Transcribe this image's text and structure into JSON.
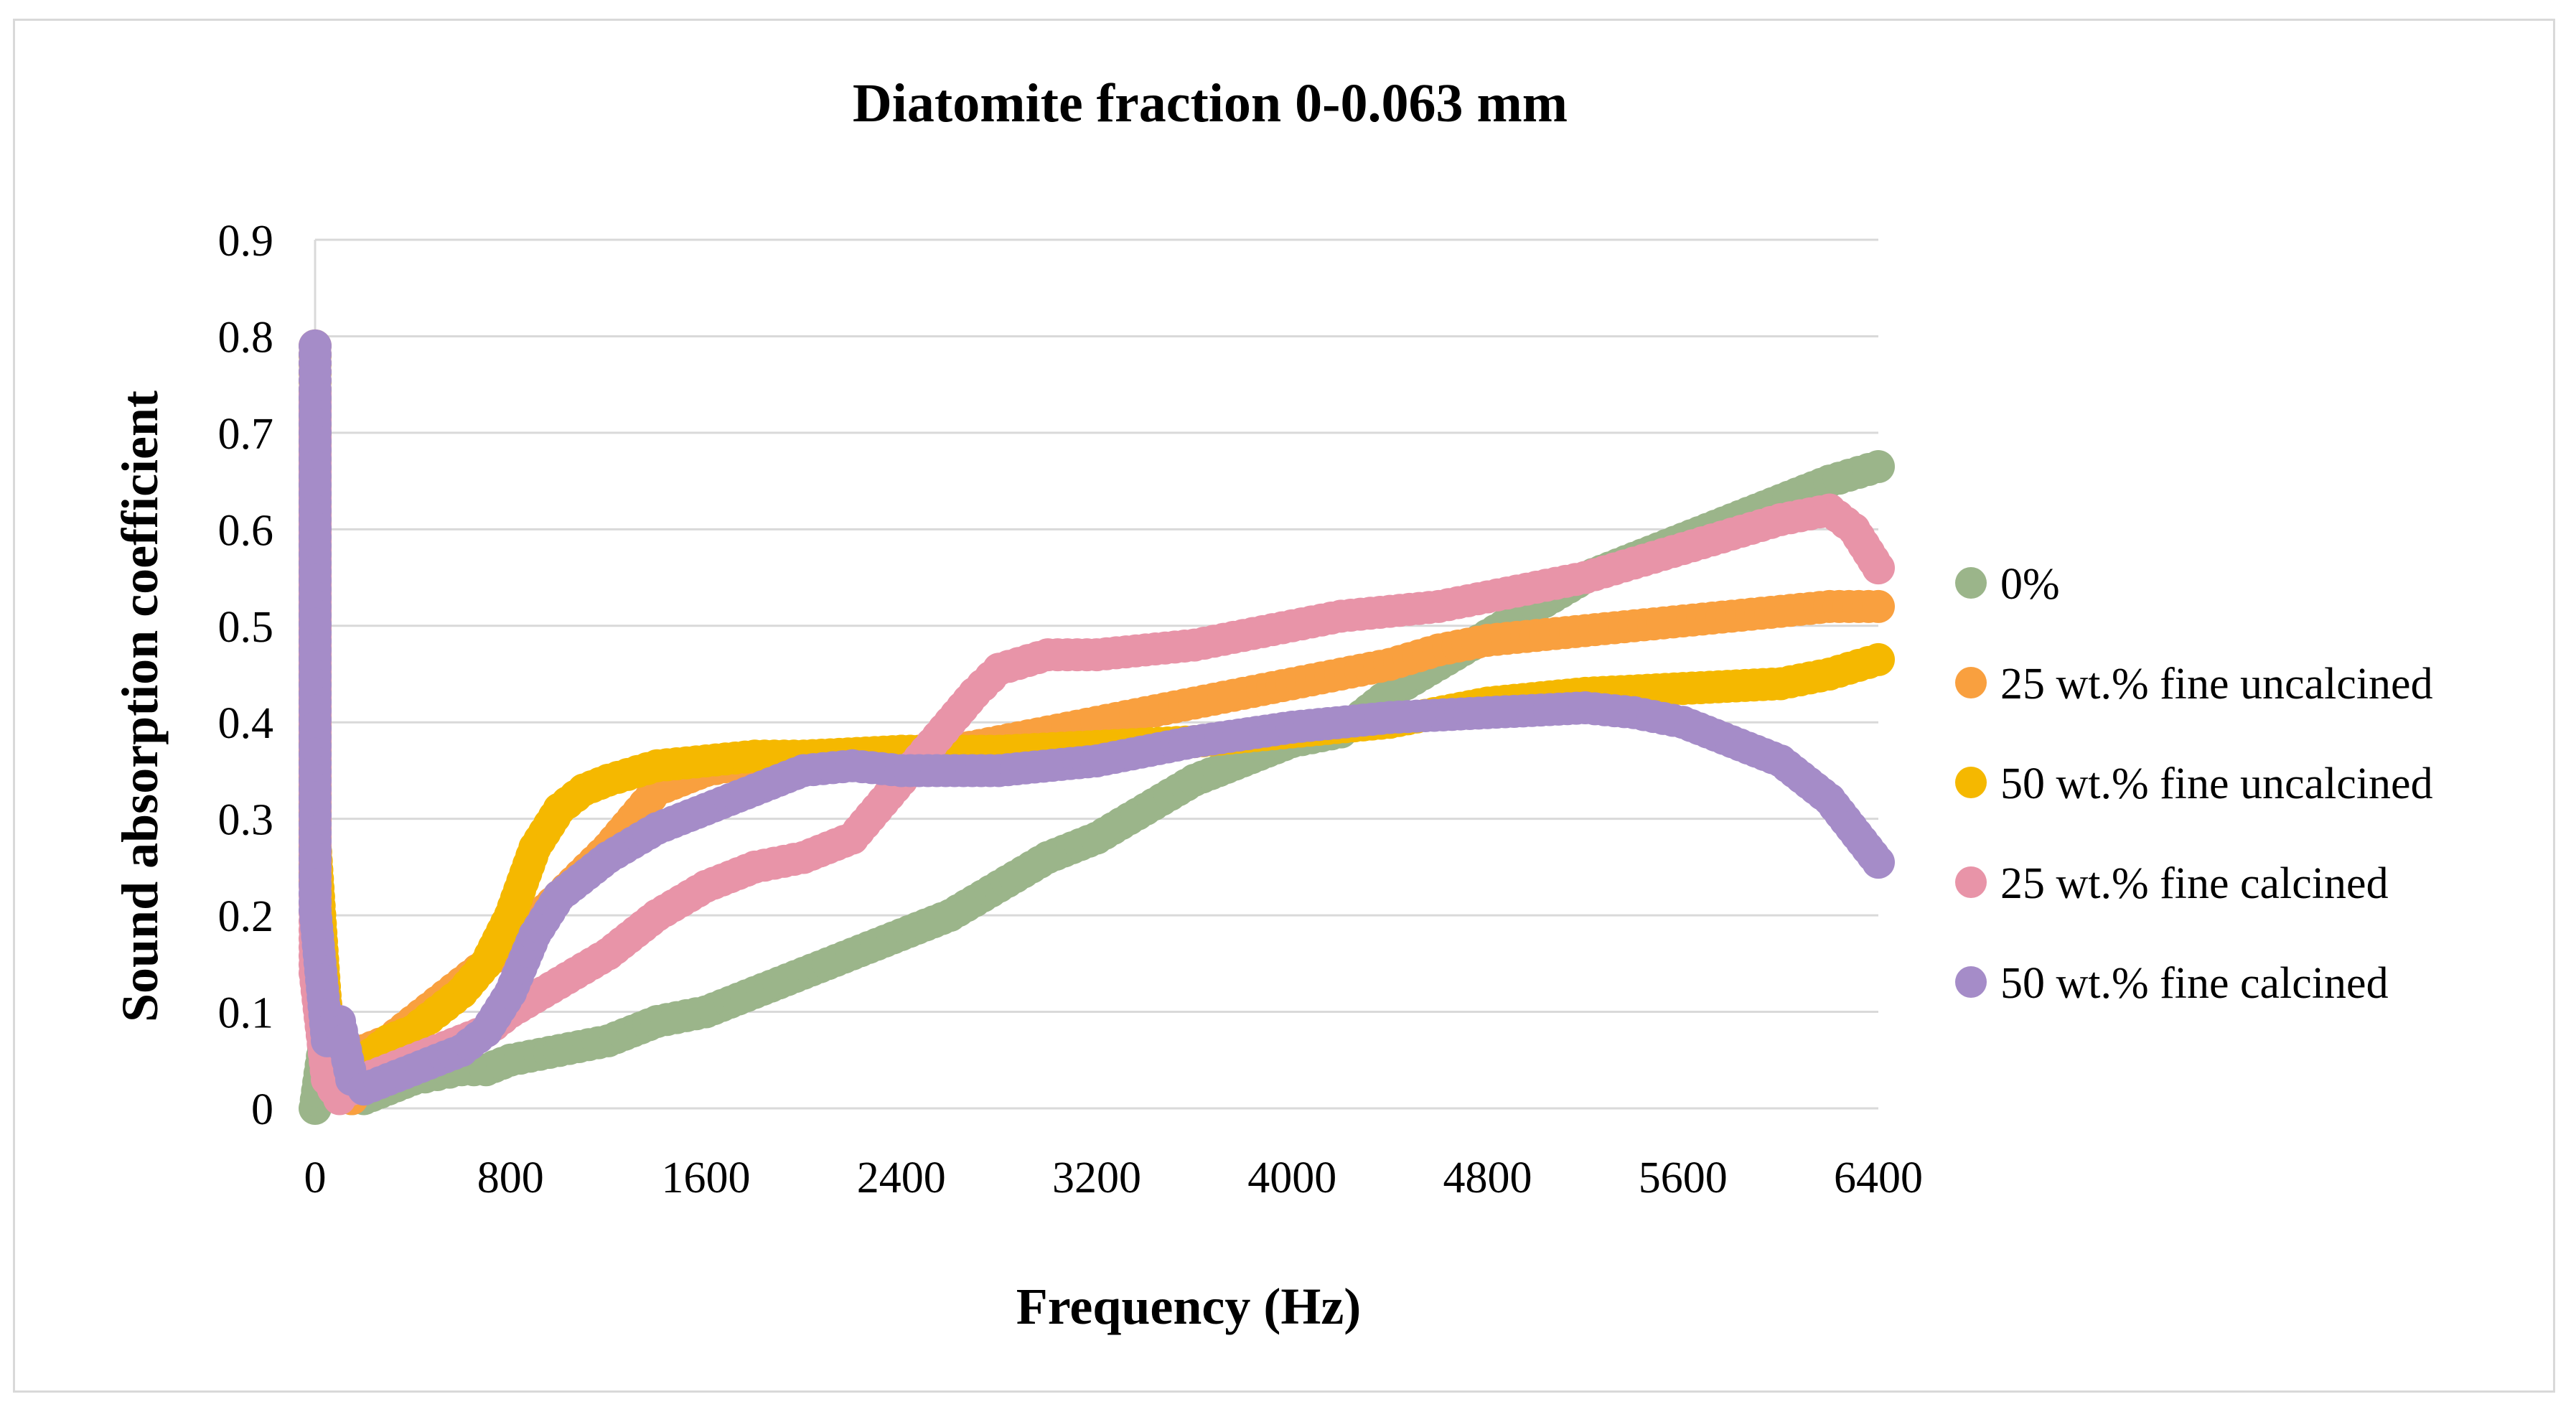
{
  "chart_data": {
    "type": "scatter",
    "title": "Diatomite fraction 0-0.063 mm",
    "xlabel": "Frequency (Hz)",
    "ylabel": "Sound absorption coefficient",
    "xlim": [
      0,
      6400
    ],
    "ylim": [
      0,
      0.9
    ],
    "xticks": [
      0,
      800,
      1600,
      2400,
      3200,
      4000,
      4800,
      5600,
      6400
    ],
    "yticks": [
      0,
      0.1,
      0.2,
      0.3,
      0.4,
      0.5,
      0.6,
      0.7,
      0.8,
      0.9
    ],
    "xtick_labels": [
      "0",
      "800",
      "1600",
      "2400",
      "3200",
      "4000",
      "4800",
      "5600",
      "6400"
    ],
    "ytick_labels": [
      "0",
      "0.1",
      "0.2",
      "0.3",
      "0.4",
      "0.5",
      "0.6",
      "0.7",
      "0.8",
      "0.9"
    ],
    "grid": "horizontal",
    "legend_position": "right",
    "series": [
      {
        "name": "0%",
        "color": "#9bb58a",
        "x": [
          0,
          50,
          100,
          150,
          200,
          300,
          400,
          500,
          600,
          700,
          800,
          1000,
          1200,
          1400,
          1600,
          1800,
          2000,
          2200,
          2400,
          2600,
          2800,
          3000,
          3200,
          3400,
          3600,
          3800,
          4000,
          4200,
          4400,
          4600,
          4800,
          5000,
          5200,
          5400,
          5600,
          5800,
          6000,
          6200,
          6400
        ],
        "y": [
          0.0,
          0.09,
          0.05,
          0.01,
          0.01,
          0.02,
          0.03,
          0.035,
          0.04,
          0.04,
          0.05,
          0.06,
          0.07,
          0.09,
          0.1,
          0.12,
          0.14,
          0.16,
          0.18,
          0.2,
          0.23,
          0.26,
          0.28,
          0.31,
          0.34,
          0.36,
          0.38,
          0.39,
          0.43,
          0.46,
          0.49,
          0.52,
          0.55,
          0.57,
          0.59,
          0.61,
          0.63,
          0.65,
          0.665
        ]
      },
      {
        "name": "25 wt.% fine uncalcined",
        "color": "#f9a03f",
        "x": [
          0,
          0,
          50,
          100,
          150,
          200,
          300,
          400,
          500,
          600,
          700,
          800,
          1000,
          1200,
          1400,
          1600,
          1800,
          2000,
          2200,
          2400,
          2600,
          2800,
          3000,
          3200,
          3400,
          3600,
          3800,
          4000,
          4200,
          4400,
          4600,
          4800,
          5000,
          5200,
          5400,
          5600,
          5800,
          6000,
          6200,
          6400
        ],
        "y": [
          0.79,
          0.235,
          0.09,
          0.02,
          0.01,
          0.06,
          0.07,
          0.09,
          0.11,
          0.13,
          0.15,
          0.17,
          0.22,
          0.27,
          0.33,
          0.35,
          0.36,
          0.36,
          0.36,
          0.37,
          0.37,
          0.38,
          0.39,
          0.4,
          0.41,
          0.42,
          0.43,
          0.44,
          0.45,
          0.46,
          0.475,
          0.485,
          0.49,
          0.495,
          0.5,
          0.505,
          0.51,
          0.515,
          0.52,
          0.52
        ]
      },
      {
        "name": "50 wt.% fine uncalcined",
        "color": "#f5b800",
        "x": [
          0,
          0,
          50,
          100,
          150,
          200,
          300,
          400,
          500,
          600,
          700,
          800,
          900,
          1000,
          1100,
          1200,
          1400,
          1600,
          1800,
          2000,
          2400,
          2800,
          3200,
          3600,
          4000,
          4400,
          4800,
          5200,
          5600,
          6000,
          6200,
          6400
        ],
        "y": [
          0.78,
          0.275,
          0.08,
          0.04,
          0.03,
          0.05,
          0.07,
          0.08,
          0.1,
          0.12,
          0.15,
          0.2,
          0.27,
          0.31,
          0.33,
          0.34,
          0.355,
          0.36,
          0.365,
          0.365,
          0.37,
          0.37,
          0.375,
          0.38,
          0.39,
          0.4,
          0.42,
          0.43,
          0.435,
          0.44,
          0.45,
          0.465
        ]
      },
      {
        "name": "25 wt.% fine calcined",
        "color": "#e894a8",
        "x": [
          0,
          0,
          50,
          100,
          150,
          200,
          300,
          400,
          500,
          600,
          700,
          800,
          1000,
          1200,
          1400,
          1600,
          1800,
          2000,
          2200,
          2400,
          2600,
          2700,
          2800,
          3000,
          3200,
          3400,
          3600,
          3800,
          4000,
          4200,
          4400,
          4600,
          4800,
          5000,
          5200,
          5400,
          5600,
          5800,
          6000,
          6200,
          6300,
          6400
        ],
        "y": [
          0.74,
          0.14,
          0.03,
          0.01,
          0.02,
          0.03,
          0.04,
          0.05,
          0.06,
          0.07,
          0.08,
          0.1,
          0.13,
          0.16,
          0.2,
          0.23,
          0.25,
          0.26,
          0.28,
          0.34,
          0.4,
          0.43,
          0.455,
          0.47,
          0.47,
          0.475,
          0.48,
          0.49,
          0.5,
          0.51,
          0.515,
          0.52,
          0.53,
          0.54,
          0.55,
          0.565,
          0.58,
          0.595,
          0.61,
          0.62,
          0.6,
          0.56
        ]
      },
      {
        "name": "50 wt.% fine calcined",
        "color": "#a58cc8",
        "x": [
          0,
          0,
          50,
          100,
          150,
          200,
          300,
          400,
          500,
          600,
          700,
          800,
          900,
          1000,
          1200,
          1400,
          1600,
          1800,
          2000,
          2200,
          2400,
          2800,
          3200,
          3600,
          4000,
          4400,
          4800,
          5200,
          5400,
          5600,
          5800,
          6000,
          6200,
          6400
        ],
        "y": [
          0.79,
          0.205,
          0.07,
          0.09,
          0.03,
          0.02,
          0.03,
          0.04,
          0.05,
          0.06,
          0.08,
          0.12,
          0.18,
          0.22,
          0.26,
          0.29,
          0.31,
          0.33,
          0.35,
          0.355,
          0.35,
          0.35,
          0.36,
          0.38,
          0.395,
          0.405,
          0.41,
          0.415,
          0.41,
          0.4,
          0.38,
          0.36,
          0.32,
          0.255
        ]
      }
    ]
  }
}
